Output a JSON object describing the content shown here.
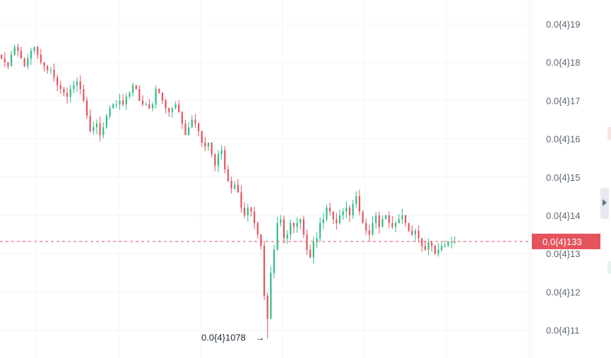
{
  "colors": {
    "up": "#2ebd85",
    "down": "#e5535d",
    "grid": "#f1f3f5",
    "current_price_line": "#e5535d",
    "badge_bg": "#e5535d",
    "axis_text": "#5d6673"
  },
  "chart_data": {
    "type": "candlestick",
    "title": "",
    "xlabel": "",
    "ylabel": "",
    "ylim": [
      1.08e-05,
      1.96e-05
    ],
    "y_ticks": [
      {
        "value": 1.9e-05,
        "label": "0.0{4}19"
      },
      {
        "value": 1.8e-05,
        "label": "0.0{4}18"
      },
      {
        "value": 1.7e-05,
        "label": "0.0{4}17"
      },
      {
        "value": 1.6e-05,
        "label": "0.0{4}16"
      },
      {
        "value": 1.5e-05,
        "label": "0.0{4}15"
      },
      {
        "value": 1.4e-05,
        "label": "0.0{4}14"
      },
      {
        "value": 1.3e-05,
        "label": "0.0{4}13"
      },
      {
        "value": 1.2e-05,
        "label": "0.0{4}12"
      },
      {
        "value": 1.1e-05,
        "label": "0.0{4}11"
      }
    ],
    "current_price": {
      "value": 1.33e-05,
      "label": "0.0{4}133"
    },
    "low_annotation": {
      "value": 1.078e-05,
      "label": "0.0{4}1078",
      "arrow": "→"
    },
    "grid": true,
    "candles_close": [
      18.1,
      18.0,
      17.9,
      18.2,
      18.4,
      18.3,
      18.1,
      17.9,
      18.1,
      18.3,
      18.4,
      18.2,
      18.0,
      17.9,
      17.8,
      17.8,
      17.6,
      17.4,
      17.3,
      17.2,
      17.1,
      17.3,
      17.4,
      17.5,
      17.3,
      17.0,
      16.6,
      16.2,
      16.3,
      16.4,
      16.1,
      16.3,
      16.6,
      16.8,
      16.9,
      16.9,
      17.0,
      16.9,
      17.1,
      17.2,
      17.4,
      17.3,
      17.0,
      16.9,
      16.9,
      16.8,
      16.9,
      17.3,
      17.2,
      17.0,
      16.8,
      16.7,
      16.8,
      16.9,
      16.7,
      16.4,
      16.1,
      16.3,
      16.5,
      16.4,
      16.2,
      15.9,
      15.8,
      15.9,
      15.6,
      15.3,
      15.6,
      15.7,
      15.2,
      14.9,
      14.7,
      14.8,
      14.6,
      14.2,
      14.0,
      14.2,
      14.1,
      13.8,
      13.5,
      13.2,
      11.9,
      11.3,
      12.5,
      13.1,
      13.8,
      13.9,
      13.4,
      13.5,
      13.8,
      13.7,
      13.8,
      13.9,
      13.5,
      13.1,
      12.9,
      13.3,
      13.4,
      13.8,
      13.9,
      14.2,
      14.1,
      13.9,
      13.8,
      14.0,
      14.1,
      14.2,
      14.0,
      14.3,
      14.5,
      14.1,
      13.8,
      13.6,
      13.5,
      13.8,
      14.0,
      13.7,
      13.9,
      14.0,
      13.8,
      13.7,
      13.8,
      13.9,
      14.0,
      13.8,
      13.6,
      13.5,
      13.6,
      13.4,
      13.2,
      13.1,
      13.3,
      13.2,
      13.0,
      13.1,
      13.2,
      13.2,
      13.3,
      13.3,
      13.3
    ]
  }
}
